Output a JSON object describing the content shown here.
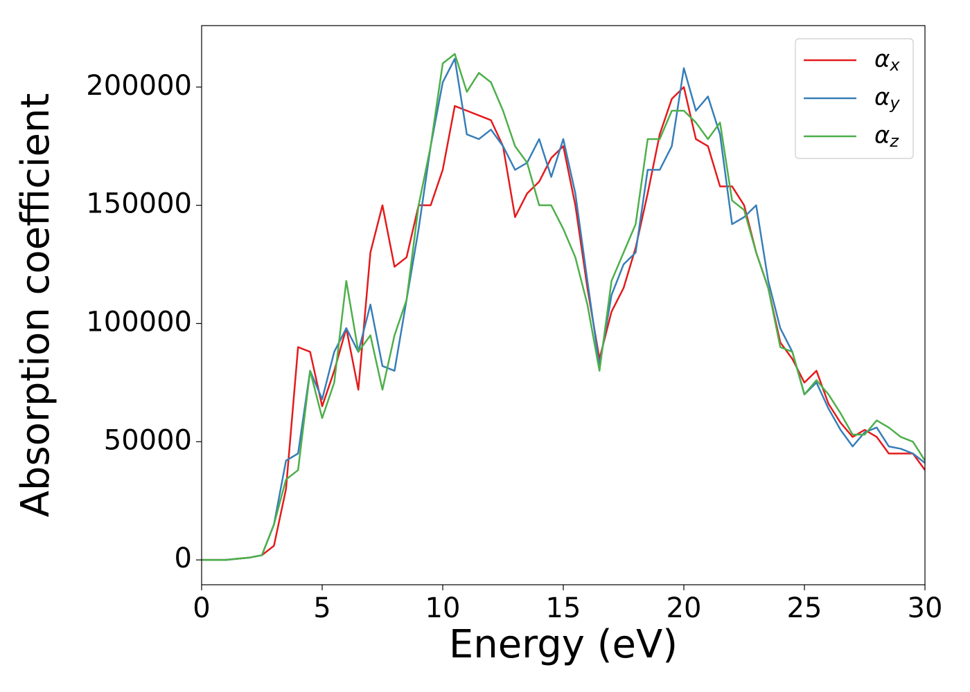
{
  "chart_data": {
    "type": "line",
    "xlabel": "Energy (eV)",
    "ylabel": "Absorption coefficient",
    "x": [
      0,
      0.5,
      1,
      1.5,
      2,
      2.5,
      3,
      3.5,
      4,
      4.5,
      5,
      5.5,
      6,
      6.5,
      7,
      7.5,
      8,
      8.5,
      9,
      9.5,
      10,
      10.5,
      11,
      11.5,
      12,
      12.5,
      13,
      13.5,
      14,
      14.5,
      15,
      15.5,
      16,
      16.5,
      17,
      17.5,
      18,
      18.5,
      19,
      19.5,
      20,
      20.5,
      21,
      21.5,
      22,
      22.5,
      23,
      23.5,
      24,
      24.5,
      25,
      25.5,
      26,
      26.5,
      27,
      27.5,
      28,
      28.5,
      29,
      29.5,
      30
    ],
    "series": [
      {
        "name": "αx",
        "color": "#e41a1c",
        "values": [
          0,
          0,
          0,
          500,
          1000,
          2000,
          6000,
          30000,
          90000,
          88000,
          65000,
          80000,
          98000,
          72000,
          130000,
          150000,
          124000,
          128000,
          150000,
          150000,
          165000,
          192000,
          190000,
          188000,
          186000,
          175000,
          145000,
          155000,
          160000,
          170000,
          175000,
          150000,
          115000,
          85000,
          105000,
          115000,
          132000,
          155000,
          180000,
          195000,
          200000,
          178000,
          175000,
          158000,
          158000,
          150000,
          130000,
          115000,
          92000,
          85000,
          75000,
          80000,
          66000,
          58000,
          52000,
          55000,
          52000,
          45000,
          45000,
          45000,
          38000
        ]
      },
      {
        "name": "αy",
        "color": "#377eb8",
        "values": [
          0,
          0,
          0,
          500,
          1000,
          2000,
          15000,
          42000,
          45000,
          80000,
          68000,
          88000,
          98000,
          88000,
          108000,
          82000,
          80000,
          110000,
          140000,
          175000,
          202000,
          212000,
          180000,
          178000,
          182000,
          175000,
          165000,
          168000,
          178000,
          162000,
          178000,
          155000,
          118000,
          82000,
          112000,
          125000,
          130000,
          165000,
          165000,
          175000,
          208000,
          190000,
          196000,
          180000,
          142000,
          145000,
          150000,
          118000,
          98000,
          88000,
          70000,
          75000,
          64000,
          55000,
          48000,
          54000,
          56000,
          48000,
          47000,
          45000,
          41000
        ]
      },
      {
        "name": "αz",
        "color": "#4daf4a",
        "values": [
          0,
          0,
          0,
          500,
          1000,
          2000,
          15000,
          34000,
          38000,
          80000,
          60000,
          75000,
          118000,
          88000,
          95000,
          72000,
          95000,
          110000,
          150000,
          175000,
          210000,
          214000,
          198000,
          206000,
          202000,
          190000,
          175000,
          168000,
          150000,
          150000,
          140000,
          128000,
          108000,
          80000,
          118000,
          130000,
          142000,
          178000,
          178000,
          190000,
          190000,
          185000,
          178000,
          185000,
          152000,
          148000,
          130000,
          115000,
          90000,
          88000,
          70000,
          76000,
          70000,
          62000,
          53000,
          53000,
          59000,
          56000,
          52000,
          50000,
          42000
        ]
      }
    ],
    "xlim": [
      0,
      30
    ],
    "xticks": [
      0,
      5,
      10,
      15,
      20,
      25,
      30
    ],
    "ylim": [
      -10500,
      226000
    ],
    "yticks": [
      0,
      50000,
      100000,
      150000,
      200000
    ],
    "legend": "upper right"
  }
}
